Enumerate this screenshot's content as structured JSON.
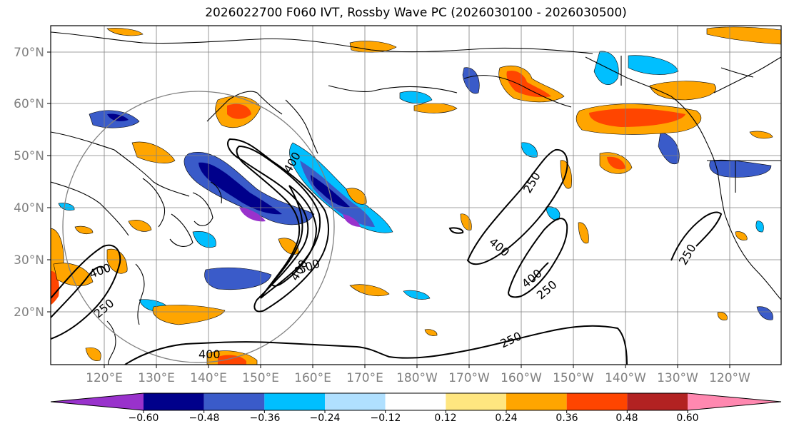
{
  "title": "2026022700 F060 IVT, Rossby Wave PC (2026030100 - 2026030500)",
  "lat_labels": [
    "70°N",
    "60°N",
    "50°N",
    "40°N",
    "30°N",
    "20°N"
  ],
  "lon_labels": [
    "120°E",
    "130°E",
    "140°E",
    "150°E",
    "160°E",
    "170°E",
    "180°W",
    "170°W",
    "160°W",
    "150°W",
    "140°W",
    "130°W",
    "120°W"
  ],
  "contour_labels": [
    "400",
    "250",
    "400",
    "400",
    "500",
    "400",
    "250",
    "400",
    "250",
    "250",
    "250",
    "400"
  ],
  "colorbar": {
    "ticks": [
      "−0.60",
      "−0.48",
      "−0.36",
      "−0.24",
      "−0.12",
      "0.12",
      "0.24",
      "0.36",
      "0.48",
      "0.60"
    ],
    "colors": [
      "#9932CC",
      "#00008B",
      "#3A5BC9",
      "#00BFFF",
      "#B0E0FF",
      "#FFFFFF",
      "#FFE680",
      "#FFA500",
      "#FF4500",
      "#B22222",
      "#FF88B0"
    ]
  },
  "colors": {
    "neg_strong": "#00008B",
    "neg_mid": "#3A5BC9",
    "neg_light": "#00BFFF",
    "neg_pale": "#B0E0FF",
    "neg_extreme": "#9932CC",
    "pos_pale": "#FFE680",
    "pos_mid": "#FFA500",
    "pos_strong": "#FF4500",
    "pos_extreme": "#B22222"
  }
}
